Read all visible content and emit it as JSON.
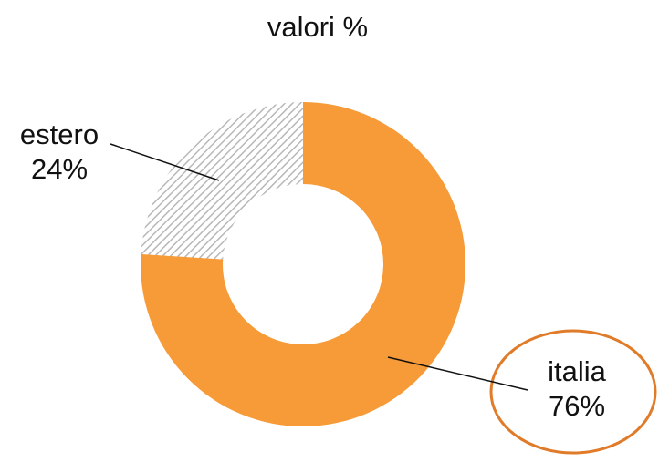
{
  "chart_data": {
    "type": "pie",
    "donut": true,
    "title": "valori %",
    "categories": [
      "italia",
      "estero"
    ],
    "values": [
      76,
      24
    ],
    "value_labels": [
      "76%",
      "24%"
    ],
    "colors": [
      "#f79a38",
      "hatch"
    ]
  }
}
